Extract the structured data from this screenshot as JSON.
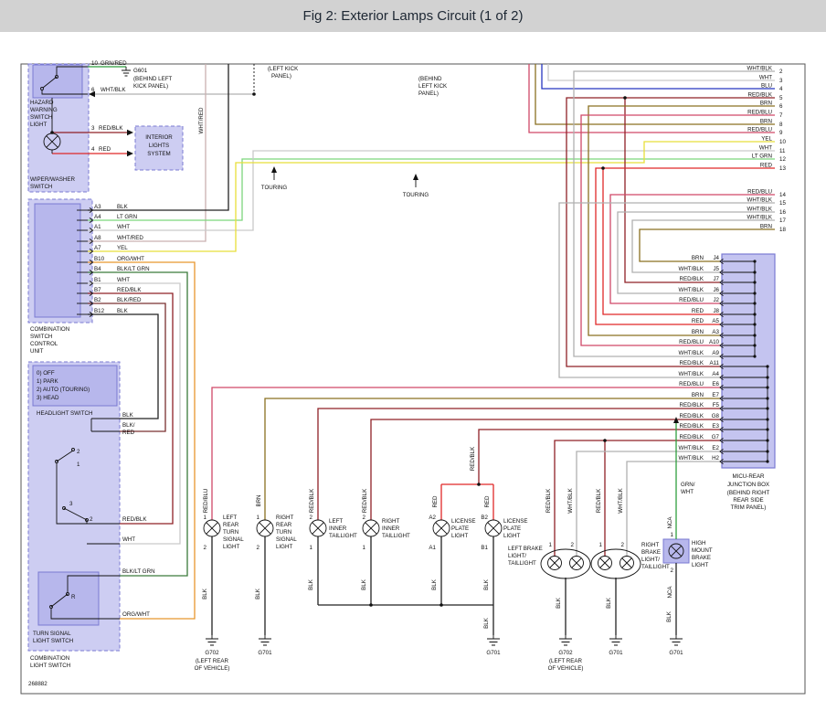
{
  "header": {
    "title": "Fig 2: Exterior Lamps Circuit (1 of 2)"
  },
  "colors": {
    "header_bg": "#d2d2d2",
    "box_fill": "#cdcdf2",
    "box_border": "#7a7ad2",
    "label_blue": "#6464d0",
    "wire_red": "#e02828",
    "wire_red_blk": "#8f2026",
    "wire_red_blu": "#d04868",
    "wire_brn": "#8a7020",
    "wire_yel": "#e8df3a",
    "wire_lt_grn": "#7cd67c",
    "wire_grn": "#2f9e3f",
    "wire_blu": "#2636c0",
    "wire_wht": "#c9c9c9",
    "wire_wht_blk": "#b0b0b0",
    "wire_org": "#e8962e",
    "wire_blk": "#222222"
  },
  "labels": {
    "hazard_name": [
      "HAZARD",
      "WARNING",
      "SWITCH",
      "LIGHT"
    ],
    "wiper_name": [
      "WIPER/WASHER",
      "SWITCH"
    ],
    "comb_unit_name": [
      "COMBINATION",
      "SWITCH",
      "CONTROL",
      "UNIT"
    ],
    "interior_name": [
      "INTERIOR",
      "LIGHTS",
      "SYSTEM"
    ],
    "headlight_legend": [
      "0) OFF",
      "1) PARK",
      "2) AUTO (TOURING)",
      "3) HEAD"
    ],
    "headlight_name": "HEADLIGHT SWITCH",
    "turn_switch_name": [
      "TURN SIGNAL",
      "LIGHT SWITCH"
    ],
    "comb_light_name": [
      "COMBINATION",
      "LIGHT SWITCH"
    ],
    "junction_name": [
      "MICU-REAR",
      "JUNCTION BOX",
      "(BEHIND RIGHT",
      "REAR SIDE",
      "TRIM PANEL)"
    ],
    "left_kick": [
      "(LEFT KICK",
      "PANEL)"
    ],
    "behind_kick": [
      "(BEHIND",
      "LEFT KICK",
      "PANEL)"
    ],
    "g601": "G601",
    "g601_loc": [
      "(BEHIND LEFT",
      "KICK PANEL)"
    ],
    "touring": "TOURING",
    "doc_number": "268882",
    "wht_red_vert": "WHT/RED"
  },
  "hazard_pins": [
    {
      "pin": "10",
      "wire": "GRN/RED"
    },
    {
      "pin": "6",
      "wire": "WHT/BLK"
    },
    {
      "pin": "3",
      "wire": "RED/BLK"
    },
    {
      "pin": "4",
      "wire": "RED"
    }
  ],
  "left_unit": {
    "pins": [
      {
        "pin": "A3",
        "wire": "BLK"
      },
      {
        "pin": "A4",
        "wire": "LT GRN"
      },
      {
        "pin": "A1",
        "wire": "WHT"
      },
      {
        "pin": "A8",
        "wire": "WHT/RED"
      },
      {
        "pin": "A7",
        "wire": "YEL"
      },
      {
        "pin": "B10",
        "wire": "ORG/WHT"
      },
      {
        "pin": "B4",
        "wire": "BLK/LT GRN"
      },
      {
        "pin": "B1",
        "wire": "WHT"
      },
      {
        "pin": "B7",
        "wire": "RED/BLK"
      },
      {
        "pin": "B2",
        "wire": "BLK/RED"
      },
      {
        "pin": "B12",
        "wire": "BLK"
      }
    ]
  },
  "switch_wires": {
    "blk": "BLK",
    "blk_red_1": "BLK/",
    "blk_red_2": "RED",
    "red_blk": "RED/BLK",
    "wht": "WHT",
    "blk_lt_grn": "BLK/LT GRN",
    "org_wht": "ORG/WHT"
  },
  "switch_marks": [
    "2",
    "1",
    "3",
    "2",
    "R"
  ],
  "right_rows": [
    {
      "wire": "WHT/BLK",
      "num": "2"
    },
    {
      "wire": "WHT",
      "num": "3"
    },
    {
      "wire": "BLU",
      "num": "4"
    },
    {
      "wire": "RED/BLK",
      "num": "5"
    },
    {
      "wire": "BRN",
      "num": "6"
    },
    {
      "wire": "RED/BLU",
      "num": "7"
    },
    {
      "wire": "BRN",
      "num": "8"
    },
    {
      "wire": "RED/BLU",
      "num": "9"
    },
    {
      "wire": "YEL",
      "num": "10"
    },
    {
      "wire": "WHT",
      "num": "11"
    },
    {
      "wire": "LT GRN",
      "num": "12"
    },
    {
      "wire": "RED",
      "num": "13"
    },
    {
      "wire": "RED/BLU",
      "num": "14"
    },
    {
      "wire": "WHT/BLK",
      "num": "15"
    },
    {
      "wire": "WHT/BLK",
      "num": "16"
    },
    {
      "wire": "WHT/BLK",
      "num": "17"
    },
    {
      "wire": "BRN",
      "num": "18"
    }
  ],
  "junction": {
    "pins": [
      {
        "wire": "BRN",
        "pin": "J4"
      },
      {
        "wire": "WHT/BLK",
        "pin": "J5"
      },
      {
        "wire": "RED/BLK",
        "pin": "J7"
      },
      {
        "wire": "WHT/BLK",
        "pin": "J6"
      },
      {
        "wire": "RED/BLU",
        "pin": "J2"
      },
      {
        "wire": "RED",
        "pin": "J8"
      },
      {
        "wire": "RED",
        "pin": "A5"
      },
      {
        "wire": "BRN",
        "pin": "A3"
      },
      {
        "wire": "RED/BLU",
        "pin": "A10"
      },
      {
        "wire": "WHT/BLK",
        "pin": "A9"
      },
      {
        "wire": "RED/BLK",
        "pin": "A11"
      },
      {
        "wire": "WHT/BLK",
        "pin": "A4"
      },
      {
        "wire": "RED/BLU",
        "pin": "E6"
      },
      {
        "wire": "BRN",
        "pin": "E7"
      },
      {
        "wire": "RED/BLK",
        "pin": "F5"
      },
      {
        "wire": "RED/BLK",
        "pin": "G8"
      },
      {
        "wire": "RED/BLK",
        "pin": "E3"
      },
      {
        "wire": "RED/BLK",
        "pin": "G7"
      },
      {
        "wire": "WHT/BLK",
        "pin": "E2"
      },
      {
        "wire": "WHT/BLK",
        "pin": "H2"
      }
    ]
  },
  "wire_names": {
    "red_blu": "RED/BLU",
    "brn": "BRN",
    "red_blk": "RED/BLK",
    "red": "RED",
    "wht_blk": "WHT/BLK",
    "blk": "BLK",
    "grn_wht_1": "GRN/",
    "grn_wht_2": "WHT",
    "nca": "NCA"
  },
  "lamp_pins": {
    "p1": "1",
    "p2": "2",
    "a1": "A1",
    "a2": "A2",
    "b1": "B1",
    "b2": "B2"
  },
  "lamps": [
    {
      "lines": [
        "LEFT",
        "REAR",
        "TURN",
        "SIGNAL",
        "LIGHT"
      ]
    },
    {
      "lines": [
        "RIGHT",
        "REAR",
        "TURN",
        "SIGNAL",
        "LIGHT"
      ]
    },
    {
      "lines": [
        "LEFT",
        "INNER",
        "TAILLIGHT"
      ]
    },
    {
      "lines": [
        "RIGHT",
        "INNER",
        "TAILLIGHT"
      ]
    },
    {
      "lines": [
        "LICENSE",
        "PLATE",
        "LIGHT"
      ]
    },
    {
      "lines": [
        "LICENSE",
        "PLATE",
        "LIGHT"
      ]
    },
    {
      "lines": [
        "LEFT BRAKE",
        "LIGHT/",
        "TAILLIGHT"
      ]
    },
    {
      "lines": [
        "RIGHT",
        "BRAKE",
        "LIGHT/",
        "TAILLIGHT"
      ]
    },
    {
      "lines": [
        "HIGH",
        "MOUNT",
        "BRAKE",
        "LIGHT"
      ]
    }
  ],
  "grounds": {
    "g701": "G701",
    "g702": "G702",
    "loc": [
      "(LEFT REAR",
      "OF VEHICLE)"
    ]
  }
}
